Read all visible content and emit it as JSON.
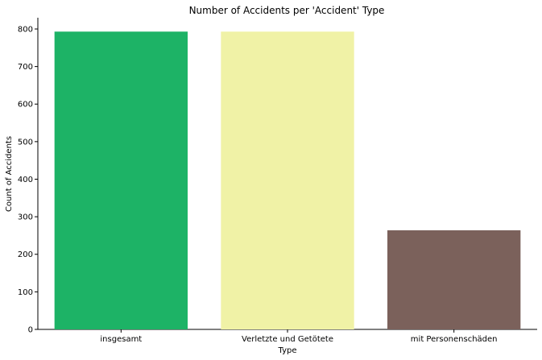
{
  "chart_data": {
    "type": "bar",
    "title": "Number of Accidents per 'Accident' Type",
    "xlabel": "Type",
    "ylabel": "Count of Accidents",
    "categories": [
      "insgesamt",
      "Verletzte und Getötete",
      "mit Personenschäden"
    ],
    "values": [
      793,
      793,
      264
    ],
    "colors": [
      "#1db366",
      "#f0f2a6",
      "#7b615b"
    ],
    "ylim": [
      0,
      830
    ],
    "yticks": [
      0,
      100,
      200,
      300,
      400,
      500,
      600,
      700,
      800
    ],
    "grid": false,
    "legend": "none"
  }
}
